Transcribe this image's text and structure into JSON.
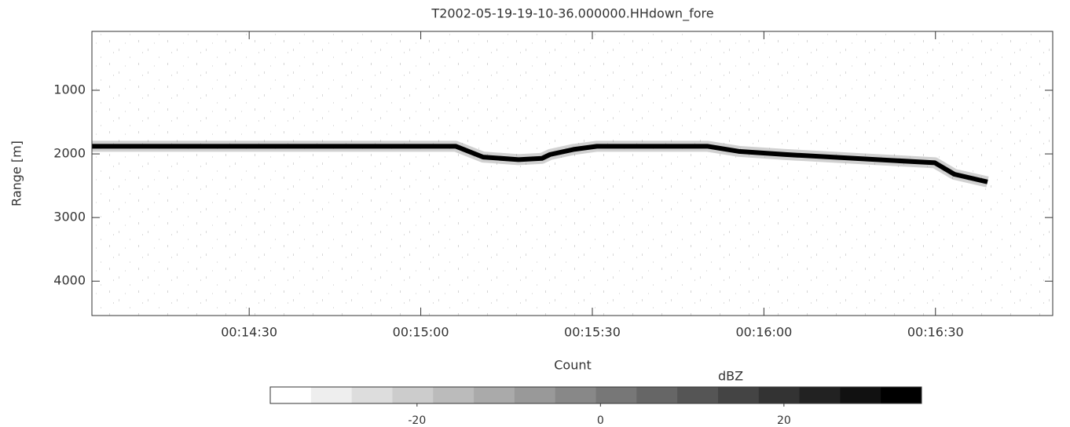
{
  "chart_data": {
    "type": "line",
    "title": "T2002-05-19-19-10-36.000000.HHdown_fore",
    "xlabel": "Count",
    "ylabel": "Range [m]",
    "xlim": [
      842.5,
      1010.5
    ],
    "xticks": [
      {
        "value": 870,
        "label": "00:14:30"
      },
      {
        "value": 900,
        "label": "00:15:00"
      },
      {
        "value": 930,
        "label": "00:15:30"
      },
      {
        "value": 960,
        "label": "00:16:00"
      },
      {
        "value": 990,
        "label": "00:16:30"
      }
    ],
    "ylim": [
      75,
      4540
    ],
    "y_inverted": true,
    "yticks": [
      1000,
      2000,
      3000,
      4000
    ],
    "series": [
      {
        "color": "#000000",
        "x": [
          842.5,
          906.1,
          910.9,
          917.1,
          921.2,
          922.6,
          926.7,
          930.8,
          950.1,
          955.6,
          963.8,
          989.9,
          993.3,
          999.1
        ],
        "values": [
          1880,
          1880,
          2050,
          2090,
          2070,
          2010,
          1930,
          1880,
          1880,
          1960,
          2010,
          2140,
          2320,
          2440
        ]
      }
    ],
    "colorbar": {
      "label": "dBZ",
      "lim": [
        -36,
        35
      ],
      "ticks": [
        -20,
        0,
        20
      ],
      "steps": 16,
      "colormap": "gray_r"
    }
  }
}
